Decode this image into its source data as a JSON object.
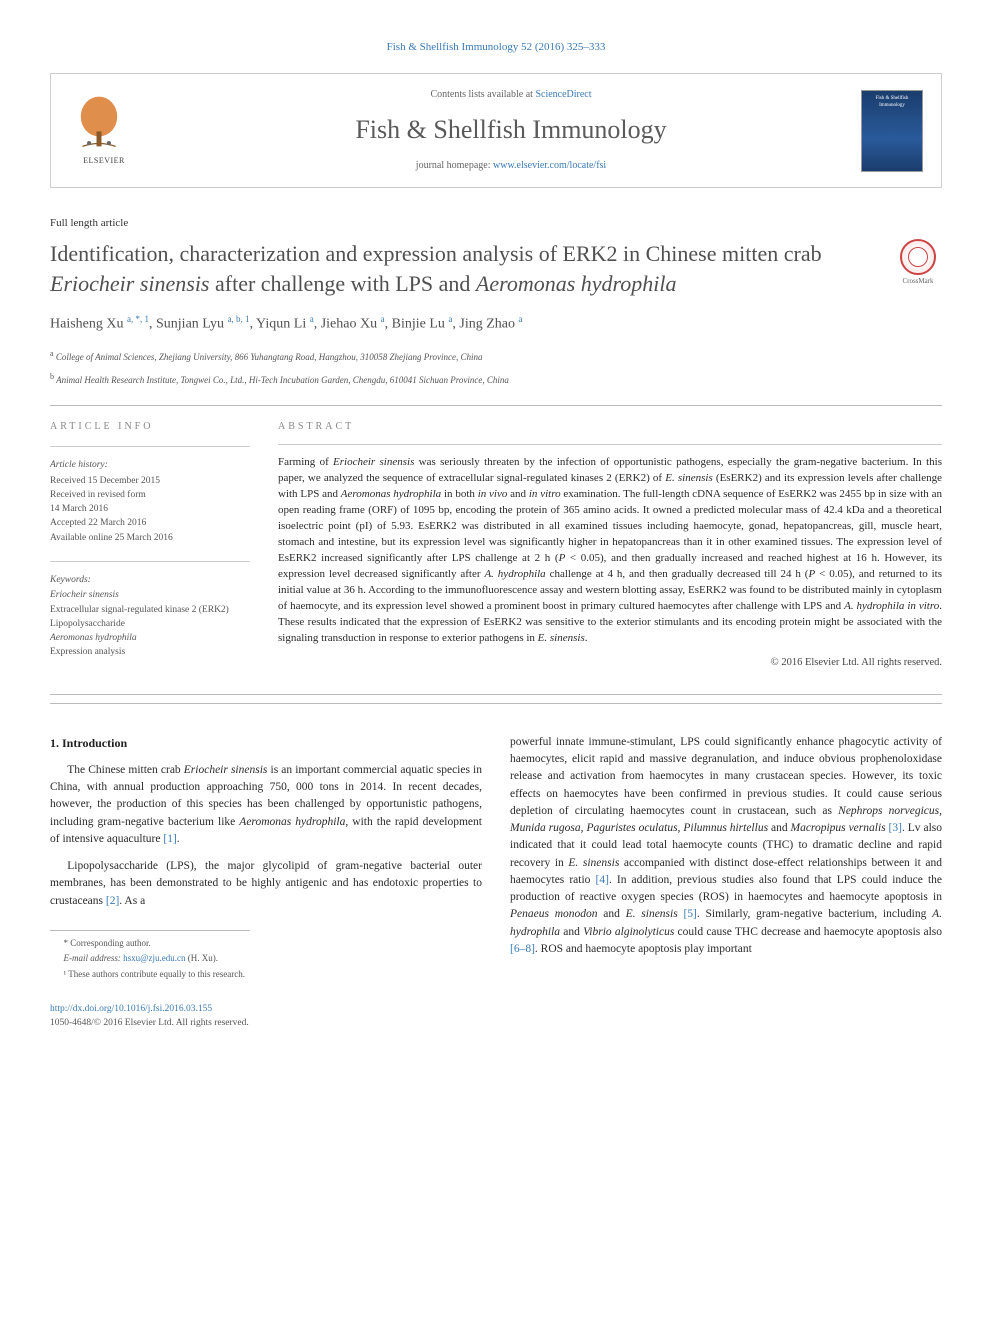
{
  "journal_ref": "Fish & Shellfish Immunology 52 (2016) 325–333",
  "header": {
    "contents_prefix": "Contents lists available at ",
    "contents_link": "ScienceDirect",
    "journal_name": "Fish & Shellfish Immunology",
    "homepage_prefix": "journal homepage: ",
    "homepage_link": "www.elsevier.com/locate/fsi",
    "elsevier_label": "ELSEVIER"
  },
  "crossmark_label": "CrossMark",
  "article_type": "Full length article",
  "title_parts": {
    "p1": "Identification, characterization and expression analysis of ERK2 in Chinese mitten crab ",
    "em1": "Eriocheir sinensis",
    "p2": " after challenge with LPS and ",
    "em2": "Aeromonas hydrophila"
  },
  "authors_html": "Haisheng Xu <sup>a, *, 1</sup>, Sunjian Lyu <sup>a, b, 1</sup>, Yiqun Li <sup>a</sup>, Jiehao Xu <sup>a</sup>, Binjie Lu <sup>a</sup>, Jing Zhao <sup>a</sup>",
  "affiliations": {
    "a": "College of Animal Sciences, Zhejiang University, 866 Yuhangtang Road, Hangzhou, 310058 Zhejiang Province, China",
    "b": "Animal Health Research Institute, Tongwei Co., Ltd., Hi-Tech Incubation Garden, Chengdu, 610041 Sichuan Province, China"
  },
  "info_heading": "ARTICLE INFO",
  "abstract_heading": "ABSTRACT",
  "history": {
    "label": "Article history:",
    "received": "Received 15 December 2015",
    "revised1": "Received in revised form",
    "revised2": "14 March 2016",
    "accepted": "Accepted 22 March 2016",
    "online": "Available online 25 March 2016"
  },
  "keywords": {
    "label": "Keywords:",
    "k1": "Eriocheir sinensis",
    "k2": "Extracellular signal-regulated kinase 2 (ERK2)",
    "k3": "Lipopolysaccharide",
    "k4": "Aeromonas hydrophila",
    "k5": "Expression analysis"
  },
  "abstract_html": "Farming of <em>Eriocheir sinensis</em> was seriously threaten by the infection of opportunistic pathogens, especially the gram-negative bacterium. In this paper, we analyzed the sequence of extracellular signal-regulated kinases 2 (ERK2) of <em>E. sinensis</em> (EsERK2) and its expression levels after challenge with LPS and <em>Aeromonas hydrophila</em> in both <em>in vivo</em> and <em>in vitro</em> examination. The full-length cDNA sequence of EsERK2 was 2455 bp in size with an open reading frame (ORF) of 1095 bp, encoding the protein of 365 amino acids. It owned a predicted molecular mass of 42.4 kDa and a theoretical isoelectric point (pI) of 5.93. EsERK2 was distributed in all examined tissues including haemocyte, gonad, hepatopancreas, gill, muscle heart, stomach and intestine, but its expression level was significantly higher in hepatopancreas than it in other examined tissues. The expression level of EsERK2 increased significantly after LPS challenge at 2 h (<em>P</em> &lt; 0.05), and then gradually increased and reached highest at 16 h. However, its expression level decreased significantly after <em>A. hydrophila</em> challenge at 4 h, and then gradually decreased till 24 h (<em>P</em> &lt; 0.05), and returned to its initial value at 36 h. According to the immunofluorescence assay and western blotting assay, EsERK2 was found to be distributed mainly in cytoplasm of haemocyte, and its expression level showed a prominent boost in primary cultured haemocytes after challenge with LPS and <em>A. hydrophila in vitro</em>. These results indicated that the expression of EsERK2 was sensitive to the exterior stimulants and its encoding protein might be associated with the signaling transduction in response to exterior pathogens in <em>E. sinensis</em>.",
  "copyright": "© 2016 Elsevier Ltd. All rights reserved.",
  "section1_heading": "1. Introduction",
  "para1_html": "The Chinese mitten crab <em>Eriocheir sinensis</em> is an important commercial aquatic species in China, with annual production approaching 750, 000 tons in 2014. In recent decades, however, the production of this species has been challenged by opportunistic pathogens, including gram-negative bacterium like <em>Aeromonas hydrophila</em>, with the rapid development of intensive aquaculture <span class=\"ref-link\">[1]</span>.",
  "para2_html": "Lipopolysaccharide (LPS), the major glycolipid of gram-negative bacterial outer membranes, has been demonstrated to be highly antigenic and has endotoxic properties to crustaceans <span class=\"ref-link\">[2]</span>. As a",
  "para3_html": "powerful innate immune-stimulant, LPS could significantly enhance phagocytic activity of haemocytes, elicit rapid and massive degranulation, and induce obvious prophenoloxidase release and activation from haemocytes in many crustacean species. However, its toxic effects on haemocytes have been confirmed in previous studies. It could cause serious depletion of circulating haemocytes count in crustacean, such as <em>Nephrops norvegicus</em>, <em>Munida rugosa</em>, <em>Paguristes oculatus</em>, <em>Pilumnus hirtellus</em> and <em>Macropipus vernalis</em> <span class=\"ref-link\">[3]</span>. Lv also indicated that it could lead total haemocyte counts (THC) to dramatic decline and rapid recovery in <em>E. sinensis</em> accompanied with distinct dose-effect relationships between it and haemocytes ratio <span class=\"ref-link\">[4]</span>. In addition, previous studies also found that LPS could induce the production of reactive oxygen species (ROS) in haemocytes and haemocyte apoptosis in <em>Penaeus monodon</em> and <em>E. sinensis</em> <span class=\"ref-link\">[5]</span>. Similarly, gram-negative bacterium, including <em>A. hydrophila</em> and <em>Vibrio alginolyticus</em> could cause THC decrease and haemocyte apoptosis also <span class=\"ref-link\">[6–8]</span>. ROS and haemocyte apoptosis play important",
  "footnotes": {
    "corr": "* Corresponding author.",
    "email_label": "E-mail address: ",
    "email": "hsxu@zju.edu.cn",
    "email_suffix": " (H. Xu).",
    "equal": "¹ These authors contribute equally to this research."
  },
  "footer": {
    "doi": "http://dx.doi.org/10.1016/j.fsi.2016.03.155",
    "issn_line": "1050-4648/© 2016 Elsevier Ltd. All rights reserved."
  }
}
